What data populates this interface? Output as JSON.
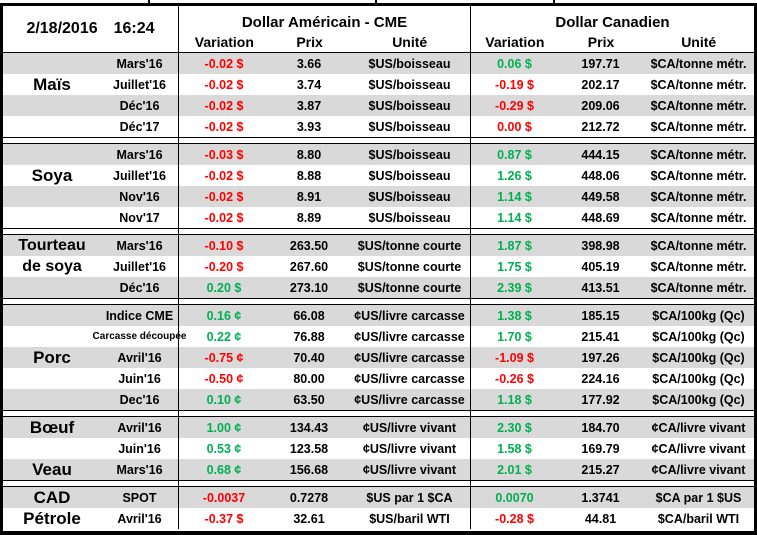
{
  "meta": {
    "date": "2/18/2016",
    "time": "16:24"
  },
  "header": {
    "us_title": "Dollar Américain - CME",
    "ca_title": "Dollar Canadien",
    "col_variation": "Variation",
    "col_prix": "Prix",
    "col_unite": "Unité"
  },
  "colors": {
    "negative": "#FF0000",
    "positive": "#00B050",
    "row_gray": "#D9D9D9",
    "border": "#000000"
  },
  "sections": [
    {
      "name": "mais",
      "rows": [
        {
          "cat": "",
          "month": "Mars'16",
          "us_var": "-0.02 $",
          "us_var_c": "red",
          "us_prix": "3.66",
          "us_unit": "$US/boisseau",
          "ca_var": "0.06 $",
          "ca_var_c": "green",
          "ca_prix": "197.71",
          "ca_unit": "$CA/tonne métr."
        },
        {
          "cat": "Maïs",
          "month": "Juillet'16",
          "us_var": "-0.02 $",
          "us_var_c": "red",
          "us_prix": "3.74",
          "us_unit": "$US/boisseau",
          "ca_var": "-0.19 $",
          "ca_var_c": "red",
          "ca_prix": "202.17",
          "ca_unit": "$CA/tonne métr."
        },
        {
          "cat": "",
          "month": "Déc'16",
          "us_var": "-0.02 $",
          "us_var_c": "red",
          "us_prix": "3.87",
          "us_unit": "$US/boisseau",
          "ca_var": "-0.29 $",
          "ca_var_c": "red",
          "ca_prix": "209.06",
          "ca_unit": "$CA/tonne métr."
        },
        {
          "cat": "",
          "month": "Déc'17",
          "us_var": "-0.02 $",
          "us_var_c": "red",
          "us_prix": "3.93",
          "us_unit": "$US/boisseau",
          "ca_var": "0.00 $",
          "ca_var_c": "red",
          "ca_prix": "212.72",
          "ca_unit": "$CA/tonne métr."
        }
      ]
    },
    {
      "name": "soya",
      "rows": [
        {
          "cat": "",
          "month": "Mars'16",
          "us_var": "-0.03 $",
          "us_var_c": "red",
          "us_prix": "8.80",
          "us_unit": "$US/boisseau",
          "ca_var": "0.87 $",
          "ca_var_c": "green",
          "ca_prix": "444.15",
          "ca_unit": "$CA/tonne métr."
        },
        {
          "cat": "Soya",
          "month": "Juillet'16",
          "us_var": "-0.02 $",
          "us_var_c": "red",
          "us_prix": "8.88",
          "us_unit": "$US/boisseau",
          "ca_var": "1.26 $",
          "ca_var_c": "green",
          "ca_prix": "448.06",
          "ca_unit": "$CA/tonne métr."
        },
        {
          "cat": "",
          "month": "Nov'16",
          "us_var": "-0.02 $",
          "us_var_c": "red",
          "us_prix": "8.91",
          "us_unit": "$US/boisseau",
          "ca_var": "1.14 $",
          "ca_var_c": "green",
          "ca_prix": "449.58",
          "ca_unit": "$CA/tonne métr."
        },
        {
          "cat": "",
          "month": "Nov'17",
          "us_var": "-0.02 $",
          "us_var_c": "red",
          "us_prix": "8.89",
          "us_unit": "$US/boisseau",
          "ca_var": "1.14 $",
          "ca_var_c": "green",
          "ca_prix": "448.69",
          "ca_unit": "$CA/tonne métr."
        }
      ]
    },
    {
      "name": "tourteau-de-soya",
      "rows": [
        {
          "cat": "Tourteau",
          "cat_two_line": true,
          "month": "Mars'16",
          "us_var": "-0.10 $",
          "us_var_c": "red",
          "us_prix": "263.50",
          "us_unit": "$US/tonne courte",
          "ca_var": "1.87 $",
          "ca_var_c": "green",
          "ca_prix": "398.98",
          "ca_unit": "$CA/tonne métr."
        },
        {
          "cat": "de soya",
          "cat_two_line": true,
          "month": "Juillet'16",
          "us_var": "-0.20 $",
          "us_var_c": "red",
          "us_prix": "267.60",
          "us_unit": "$US/tonne courte",
          "ca_var": "1.75 $",
          "ca_var_c": "green",
          "ca_prix": "405.19",
          "ca_unit": "$CA/tonne métr."
        },
        {
          "cat": "",
          "month": "Déc'16",
          "us_var": "0.20 $",
          "us_var_c": "green",
          "us_prix": "273.10",
          "us_unit": "$US/tonne courte",
          "ca_var": "2.39 $",
          "ca_var_c": "green",
          "ca_prix": "413.51",
          "ca_unit": "$CA/tonne métr."
        }
      ]
    },
    {
      "name": "porc",
      "rows": [
        {
          "cat": "",
          "month": "Indice CME",
          "us_var": "0.16 ¢",
          "us_var_c": "green",
          "us_prix": "66.08",
          "us_unit": "¢US/livre carcasse",
          "ca_var": "1.38 $",
          "ca_var_c": "green",
          "ca_prix": "185.15",
          "ca_unit": "$CA/100kg (Qc)"
        },
        {
          "cat": "",
          "month": "Carcasse découpée",
          "month_small": true,
          "us_var": "0.22 ¢",
          "us_var_c": "green",
          "us_prix": "76.88",
          "us_unit": "¢US/livre carcasse",
          "ca_var": "1.70 $",
          "ca_var_c": "green",
          "ca_prix": "215.41",
          "ca_unit": "$CA/100kg (Qc)"
        },
        {
          "cat": "Porc",
          "month": "Avril'16",
          "us_var": "-0.75 ¢",
          "us_var_c": "red",
          "us_prix": "70.40",
          "us_unit": "¢US/livre carcasse",
          "ca_var": "-1.09 $",
          "ca_var_c": "red",
          "ca_prix": "197.26",
          "ca_unit": "$CA/100kg (Qc)"
        },
        {
          "cat": "",
          "month": "Juin'16",
          "us_var": "-0.50 ¢",
          "us_var_c": "red",
          "us_prix": "80.00",
          "us_unit": "¢US/livre carcasse",
          "ca_var": "-0.26 $",
          "ca_var_c": "red",
          "ca_prix": "224.16",
          "ca_unit": "$CA/100kg (Qc)"
        },
        {
          "cat": "",
          "month": "Dec'16",
          "us_var": "0.10 ¢",
          "us_var_c": "green",
          "us_prix": "63.50",
          "us_unit": "¢US/livre carcasse",
          "ca_var": "1.18 $",
          "ca_var_c": "green",
          "ca_prix": "177.92",
          "ca_unit": "$CA/100kg (Qc)"
        }
      ]
    },
    {
      "name": "boeuf-veau",
      "rows": [
        {
          "cat": "Bœuf",
          "month": "Avril'16",
          "us_var": "1.00 ¢",
          "us_var_c": "green",
          "us_prix": "134.43",
          "us_unit": "¢US/livre vivant",
          "ca_var": "2.30 $",
          "ca_var_c": "green",
          "ca_prix": "184.70",
          "ca_unit": "¢CA/livre vivant"
        },
        {
          "cat": "",
          "month": "Juin'16",
          "us_var": "0.53 ¢",
          "us_var_c": "green",
          "us_prix": "123.58",
          "us_unit": "¢US/livre vivant",
          "ca_var": "1.58 $",
          "ca_var_c": "green",
          "ca_prix": "169.79",
          "ca_unit": "¢CA/livre vivant"
        },
        {
          "cat": "Veau",
          "month": "Mars'16",
          "us_var": "0.68 ¢",
          "us_var_c": "green",
          "us_prix": "156.68",
          "us_unit": "¢US/livre vivant",
          "ca_var": "2.01 $",
          "ca_var_c": "green",
          "ca_prix": "215.27",
          "ca_unit": "¢CA/livre vivant"
        }
      ]
    },
    {
      "name": "cad-petrole",
      "rows": [
        {
          "cat": "CAD",
          "month": "SPOT",
          "us_var": "-0.0037",
          "us_var_c": "red",
          "us_prix": "0.7278",
          "us_unit": "$US par 1 $CA",
          "ca_var": "0.0070",
          "ca_var_c": "green",
          "ca_prix": "1.3741",
          "ca_unit": "$CA par 1 $US"
        },
        {
          "cat": "Pétrole",
          "month": "Avril'16",
          "us_var": "-0.37 $",
          "us_var_c": "red",
          "us_prix": "32.61",
          "us_unit": "$US/baril WTI",
          "ca_var": "-0.28 $",
          "ca_var_c": "red",
          "ca_prix": "44.81",
          "ca_unit": "$CA/baril WTI"
        }
      ]
    }
  ]
}
